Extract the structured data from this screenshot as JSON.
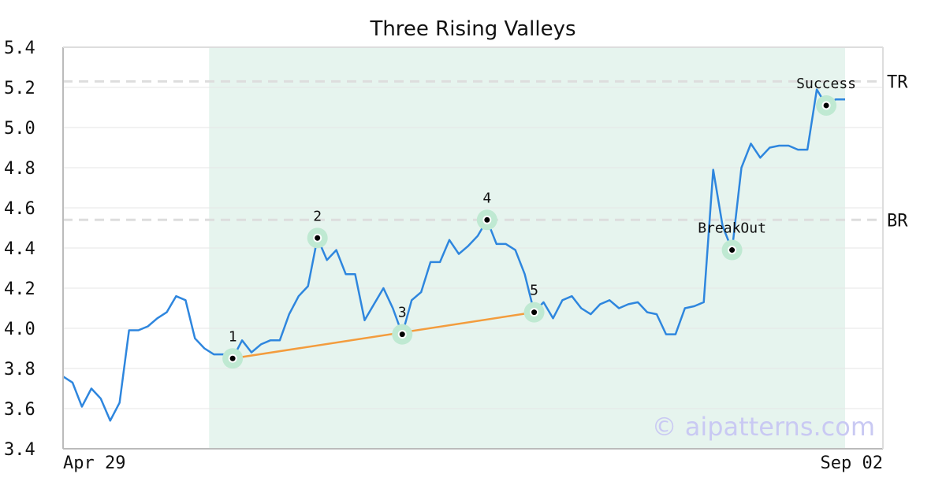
{
  "chart_data": {
    "type": "line",
    "title": "Three Rising Valleys",
    "xlabel": "",
    "ylabel": "",
    "ylim": [
      3.4,
      5.4
    ],
    "yticks": [
      "3.4",
      "3.6",
      "3.8",
      "4.0",
      "4.2",
      "4.4",
      "4.6",
      "4.8",
      "5.0",
      "5.2",
      "5.4"
    ],
    "x_tick_labels": {
      "first": "Apr 29",
      "last": "Sep 02"
    },
    "grid": true,
    "colors": {
      "line": "#2e86de",
      "trendline": "#f39c3d",
      "highlight": "#e6f4ee",
      "marker_halo": "#bfe9d2",
      "refline": "#dddddd"
    },
    "series": [
      {
        "values": [
          3.76,
          3.73,
          3.61,
          3.7,
          3.65,
          3.54,
          3.63,
          3.99,
          3.99,
          4.01,
          4.05,
          4.08,
          4.16,
          4.14,
          3.95,
          3.9,
          3.87,
          3.87,
          3.85,
          3.94,
          3.88,
          3.92,
          3.94,
          3.94,
          4.07,
          4.16,
          4.21,
          4.45,
          4.34,
          4.39,
          4.27,
          4.27,
          4.04,
          4.12,
          4.2,
          4.1,
          3.97,
          4.14,
          4.18,
          4.33,
          4.33,
          4.44,
          4.37,
          4.41,
          4.46,
          4.54,
          4.42,
          4.42,
          4.39,
          4.27,
          4.08,
          4.13,
          4.05,
          4.14,
          4.16,
          4.1,
          4.07,
          4.12,
          4.14,
          4.1,
          4.12,
          4.13,
          4.08,
          4.07,
          3.97,
          3.97,
          4.1,
          4.11,
          4.13,
          4.79,
          4.51,
          4.39,
          4.8,
          4.92,
          4.85,
          4.9,
          4.91,
          4.91,
          4.89,
          4.89,
          5.19,
          5.11,
          5.14,
          5.14
        ]
      }
    ],
    "highlight_range": [
      16,
      83
    ],
    "reference_lines": [
      {
        "label": "TR",
        "value": 5.23
      },
      {
        "label": "BR",
        "value": 4.54
      }
    ],
    "points": [
      {
        "label": "1",
        "index": 18,
        "value": 3.85
      },
      {
        "label": "2",
        "index": 27,
        "value": 4.45
      },
      {
        "label": "3",
        "index": 36,
        "value": 3.97
      },
      {
        "label": "4",
        "index": 45,
        "value": 4.54
      },
      {
        "label": "5",
        "index": 50,
        "value": 4.08
      },
      {
        "label": "BreakOut",
        "index": 71,
        "value": 4.39
      },
      {
        "label": "Success",
        "index": 81,
        "value": 5.11
      }
    ],
    "trendline": {
      "from_point": 0,
      "to_point": 4
    },
    "watermark": "© aipatterns.com"
  }
}
